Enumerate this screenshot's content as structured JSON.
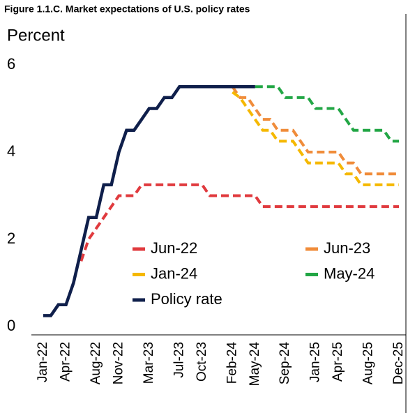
{
  "chart_data": {
    "type": "line",
    "title": "Figure 1.1.C. Market expectations of U.S. policy rates",
    "ylabel": "Percent",
    "categories": [
      "Jan-22",
      null,
      null,
      "Apr-22",
      null,
      null,
      null,
      "Aug-22",
      null,
      null,
      "Nov-22",
      null,
      null,
      null,
      "Mar-23",
      null,
      null,
      null,
      "Jul-23",
      null,
      null,
      "Oct-23",
      null,
      null,
      null,
      "Feb-24",
      null,
      null,
      "May-24",
      null,
      null,
      null,
      "Sep-24",
      null,
      null,
      null,
      "Jan-25",
      null,
      null,
      "Apr-25",
      null,
      null,
      null,
      "Aug-25",
      null,
      null,
      null,
      "Dec-25"
    ],
    "ylim": [
      0,
      6
    ],
    "yticks": [
      0,
      2,
      4,
      6
    ],
    "grid": false,
    "series": [
      {
        "name": "Jun-22",
        "color": "#e03a3e",
        "dashed": true,
        "values": [
          null,
          null,
          null,
          null,
          null,
          1.5,
          2.0,
          2.25,
          2.5,
          2.75,
          3.0,
          3.0,
          3.0,
          3.25,
          3.25,
          3.25,
          3.25,
          3.25,
          3.25,
          3.25,
          3.25,
          3.25,
          3.0,
          3.0,
          3.0,
          3.0,
          3.0,
          3.0,
          3.0,
          2.75,
          2.75,
          2.75,
          2.75,
          2.75,
          2.75,
          2.75,
          2.75,
          2.75,
          2.75,
          2.75,
          2.75,
          2.75,
          2.75,
          2.75,
          2.75,
          2.75,
          2.75,
          2.75
        ]
      },
      {
        "name": "Jun-23",
        "color": "#f08c3a",
        "dashed": true,
        "values": [
          null,
          null,
          null,
          null,
          null,
          null,
          null,
          null,
          null,
          null,
          null,
          null,
          null,
          null,
          null,
          null,
          null,
          null,
          null,
          null,
          null,
          null,
          null,
          null,
          null,
          5.5,
          5.25,
          5.25,
          5.0,
          4.75,
          4.75,
          4.5,
          4.5,
          4.5,
          4.25,
          4.0,
          4.0,
          4.0,
          4.0,
          4.0,
          3.75,
          3.75,
          3.5,
          3.5,
          3.5,
          3.5,
          3.5,
          3.5
        ]
      },
      {
        "name": "Jan-24",
        "color": "#f5b800",
        "dashed": true,
        "values": [
          null,
          null,
          null,
          null,
          null,
          null,
          null,
          null,
          null,
          null,
          null,
          null,
          null,
          null,
          null,
          null,
          null,
          null,
          null,
          null,
          null,
          null,
          null,
          null,
          null,
          5.375,
          5.25,
          5.0,
          4.75,
          4.5,
          4.5,
          4.25,
          4.25,
          4.25,
          4.0,
          3.75,
          3.75,
          3.75,
          3.75,
          3.75,
          3.5,
          3.5,
          3.25,
          3.25,
          3.25,
          3.25,
          3.25,
          3.25
        ]
      },
      {
        "name": "May-24",
        "color": "#22a645",
        "dashed": true,
        "values": [
          null,
          null,
          null,
          null,
          null,
          null,
          null,
          null,
          null,
          null,
          null,
          null,
          null,
          null,
          null,
          null,
          null,
          null,
          null,
          null,
          null,
          null,
          null,
          null,
          null,
          null,
          null,
          null,
          5.5,
          5.5,
          5.5,
          5.5,
          5.25,
          5.25,
          5.25,
          5.25,
          5.0,
          5.0,
          5.0,
          5.0,
          4.75,
          4.5,
          4.5,
          4.5,
          4.5,
          4.5,
          4.25,
          4.25
        ]
      },
      {
        "name": "Policy rate",
        "color": "#0f1f4b",
        "dashed": false,
        "values": [
          0.25,
          0.25,
          0.5,
          0.5,
          1.0,
          1.75,
          2.5,
          2.5,
          3.25,
          3.25,
          4.0,
          4.5,
          4.5,
          4.75,
          5.0,
          5.0,
          5.25,
          5.25,
          5.5,
          5.5,
          5.5,
          5.5,
          5.5,
          5.5,
          5.5,
          5.5,
          5.5,
          5.5,
          5.5,
          null,
          null,
          null,
          null,
          null,
          null,
          null,
          null,
          null,
          null,
          null,
          null,
          null,
          null,
          null,
          null,
          null,
          null,
          null
        ]
      }
    ]
  }
}
